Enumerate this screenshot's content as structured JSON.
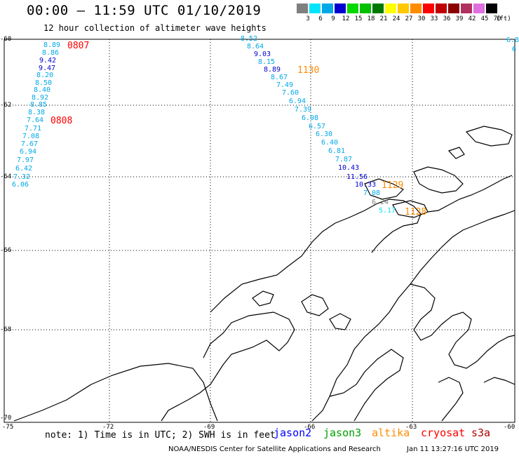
{
  "header": {
    "title": "00:00 – 11:59 UTC 01/10/2019",
    "subtitle": "12 hour collection of altimeter wave heights"
  },
  "color_scale": {
    "unit": "(ft)",
    "bins": [
      {
        "label": "3",
        "color": "#7f7f7f"
      },
      {
        "label": "6",
        "color": "#00e5ff"
      },
      {
        "label": "9",
        "color": "#00a8e8"
      },
      {
        "label": "12",
        "color": "#0000d0"
      },
      {
        "label": "15",
        "color": "#00d800"
      },
      {
        "label": "18",
        "color": "#00c000"
      },
      {
        "label": "21",
        "color": "#007800"
      },
      {
        "label": "24",
        "color": "#ffff00"
      },
      {
        "label": "27",
        "color": "#ffc800"
      },
      {
        "label": "30",
        "color": "#ff8c00"
      },
      {
        "label": "33",
        "color": "#ff0000"
      },
      {
        "label": "36",
        "color": "#c00000"
      },
      {
        "label": "39",
        "color": "#8b0000"
      },
      {
        "label": "42",
        "color": "#b03060"
      },
      {
        "label": "45",
        "color": "#e070e0"
      },
      {
        "label": "70",
        "color": "#000000"
      }
    ]
  },
  "axes": {
    "lat_labels": [
      "-60",
      "-62",
      "-64",
      "-66",
      "-68",
      "-70"
    ],
    "lon_labels": [
      "-75",
      "-72",
      "-69",
      "-66",
      "-63",
      "-60"
    ]
  },
  "track_west": {
    "values": [
      "8.89",
      "8.86",
      "9.42",
      "9.47",
      "8.20",
      "8.50",
      "8.40",
      "8.92",
      "8.85",
      "8.38",
      "7.64",
      "7.71",
      "7.08",
      "7.67",
      "6.94",
      "7.97",
      "6.42",
      "7.32",
      "6.06"
    ],
    "colors": [
      "#00a8e8",
      "#00a8e8",
      "#0000d0",
      "#0000d0",
      "#00a8e8",
      "#00a8e8",
      "#00a8e8",
      "#00a8e8",
      "#00a8e8",
      "#00a8e8",
      "#00a8e8",
      "#00a8e8",
      "#00a8e8",
      "#00a8e8",
      "#00a8e8",
      "#00a8e8",
      "#00a8e8",
      "#00a8e8",
      "#00a8e8"
    ]
  },
  "track_east": {
    "values": [
      "8.52",
      "8.64",
      "9.03",
      "8.15",
      "8.89",
      "8.67",
      "7.49",
      "7.60",
      "6.94",
      "7.39",
      "6.98",
      "6.57",
      "6.30",
      "6.40",
      "6.81",
      "7.87",
      "10.43",
      "11.56",
      "10.33",
      "7.08",
      "6.24",
      "5.17"
    ],
    "colors": [
      "#00a8e8",
      "#00a8e8",
      "#0000d0",
      "#00a8e8",
      "#0000d0",
      "#00a8e8",
      "#00a8e8",
      "#00a8e8",
      "#00a8e8",
      "#00a8e8",
      "#00a8e8",
      "#00a8e8",
      "#00a8e8",
      "#00a8e8",
      "#00a8e8",
      "#00a8e8",
      "#0000d0",
      "#0000d0",
      "#0000d0",
      "#00a8e8",
      "#7f7f7f",
      "#00e5ff"
    ]
  },
  "edge_values": [
    "6.8",
    "6"
  ],
  "time_labels": [
    {
      "text": "0807",
      "color": "#ff0000"
    },
    {
      "text": "0808",
      "color": "#ff0000"
    },
    {
      "text": "1130",
      "color": "#ff8c00"
    },
    {
      "text": "1129",
      "color": "#ff8c00"
    },
    {
      "text": "1128",
      "color": "#ff8c00"
    }
  ],
  "legend": {
    "note": "note: 1) Time is in UTC; 2) SWH is in feet",
    "satellites": [
      {
        "name": "jason2",
        "color": "#0000ff"
      },
      {
        "name": "jason3",
        "color": "#00a000"
      },
      {
        "name": "altika",
        "color": "#ff8c00"
      },
      {
        "name": "cryosat",
        "color": "#ff0000"
      },
      {
        "name": "s3a",
        "color": "#b00000"
      }
    ]
  },
  "footer": {
    "credit": "NOAA/NESDIS Center for Satellite Applications and Research",
    "timestamp": "Jan 11 13:27:16 UTC 2019"
  }
}
